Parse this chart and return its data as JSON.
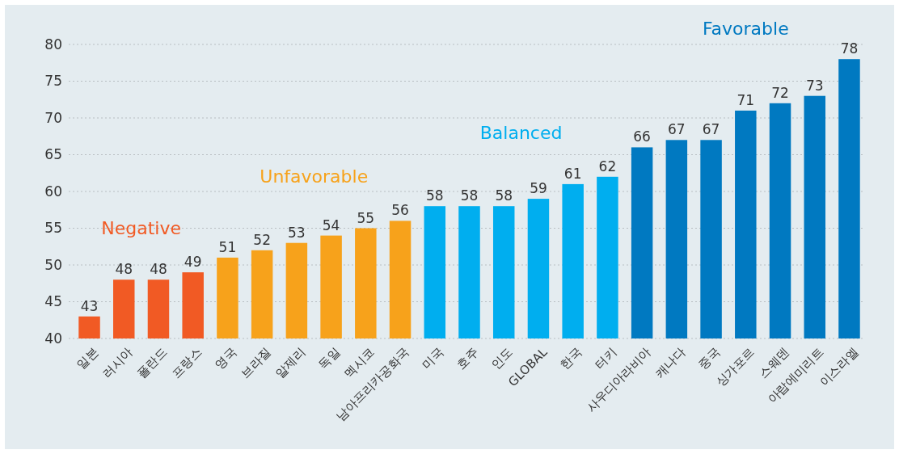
{
  "chart_data": {
    "type": "bar",
    "categories": [
      "일본",
      "러시아",
      "폴란드",
      "프랑스",
      "영국",
      "브라질",
      "알제리",
      "독일",
      "멕시코",
      "남아프리카공화국",
      "미국",
      "호주",
      "인도",
      "GLOBAL",
      "한국",
      "터키",
      "사우디아라비아",
      "캐나다",
      "중국",
      "싱가포르",
      "스웨덴",
      "아랍에미리트",
      "이스라엘"
    ],
    "values": [
      43,
      48,
      48,
      49,
      51,
      52,
      53,
      54,
      55,
      56,
      58,
      58,
      58,
      59,
      61,
      62,
      66,
      67,
      67,
      71,
      72,
      73,
      78
    ],
    "colors": [
      "#f15a24",
      "#f15a24",
      "#f15a24",
      "#f15a24",
      "#f7a21b",
      "#f7a21b",
      "#f7a21b",
      "#f7a21b",
      "#f7a21b",
      "#f7a21b",
      "#00aeef",
      "#00aeef",
      "#00aeef",
      "#00aeef",
      "#00aeef",
      "#00aeef",
      "#0079c1",
      "#0079c1",
      "#0079c1",
      "#0079c1",
      "#0079c1",
      "#0079c1",
      "#0079c1"
    ],
    "ylim": [
      40,
      80
    ],
    "yticks": [
      40,
      45,
      50,
      55,
      60,
      65,
      70,
      75,
      80
    ],
    "grid": "y",
    "data_labels": true,
    "annotations": [
      "Negative",
      "Unfavorable",
      "Balanced",
      "Favorable"
    ]
  }
}
